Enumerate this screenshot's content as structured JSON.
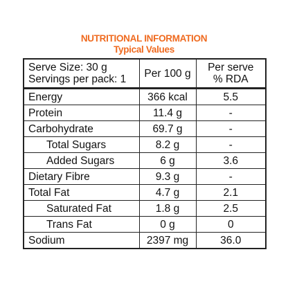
{
  "header": {
    "title": "NUTRITIONAL INFORMATION",
    "subtitle": "Typical Values"
  },
  "table": {
    "head": [
      [
        "Serve Size: 30 g",
        "Servings per pack: 1"
      ],
      [
        "Per 100 g"
      ],
      [
        "Per serve",
        "% RDA"
      ]
    ],
    "rows": [
      {
        "label": "Energy",
        "per_100g": "366 kcal",
        "per_serve": "5.5",
        "indent": false
      },
      {
        "label": "Protein",
        "per_100g": "11.4 g",
        "per_serve": "-",
        "indent": false
      },
      {
        "label": "Carbohydrate",
        "per_100g": "69.7 g",
        "per_serve": "-",
        "indent": false
      },
      {
        "label": "Total Sugars",
        "per_100g": "8.2 g",
        "per_serve": "-",
        "indent": true
      },
      {
        "label": "Added Sugars",
        "per_100g": "6 g",
        "per_serve": "3.6",
        "indent": true
      },
      {
        "label": "Dietary Fibre",
        "per_100g": "9.3 g",
        "per_serve": "-",
        "indent": false
      },
      {
        "label": "Total Fat",
        "per_100g": "4.7 g",
        "per_serve": "2.1",
        "indent": false
      },
      {
        "label": "Saturated Fat",
        "per_100g": "1.8 g",
        "per_serve": "2.5",
        "indent": true
      },
      {
        "label": "Trans Fat",
        "per_100g": "0 g",
        "per_serve": "0",
        "indent": true
      },
      {
        "label": "Sodium",
        "per_100g": "2397 mg",
        "per_serve": "36.0",
        "indent": false
      }
    ]
  }
}
